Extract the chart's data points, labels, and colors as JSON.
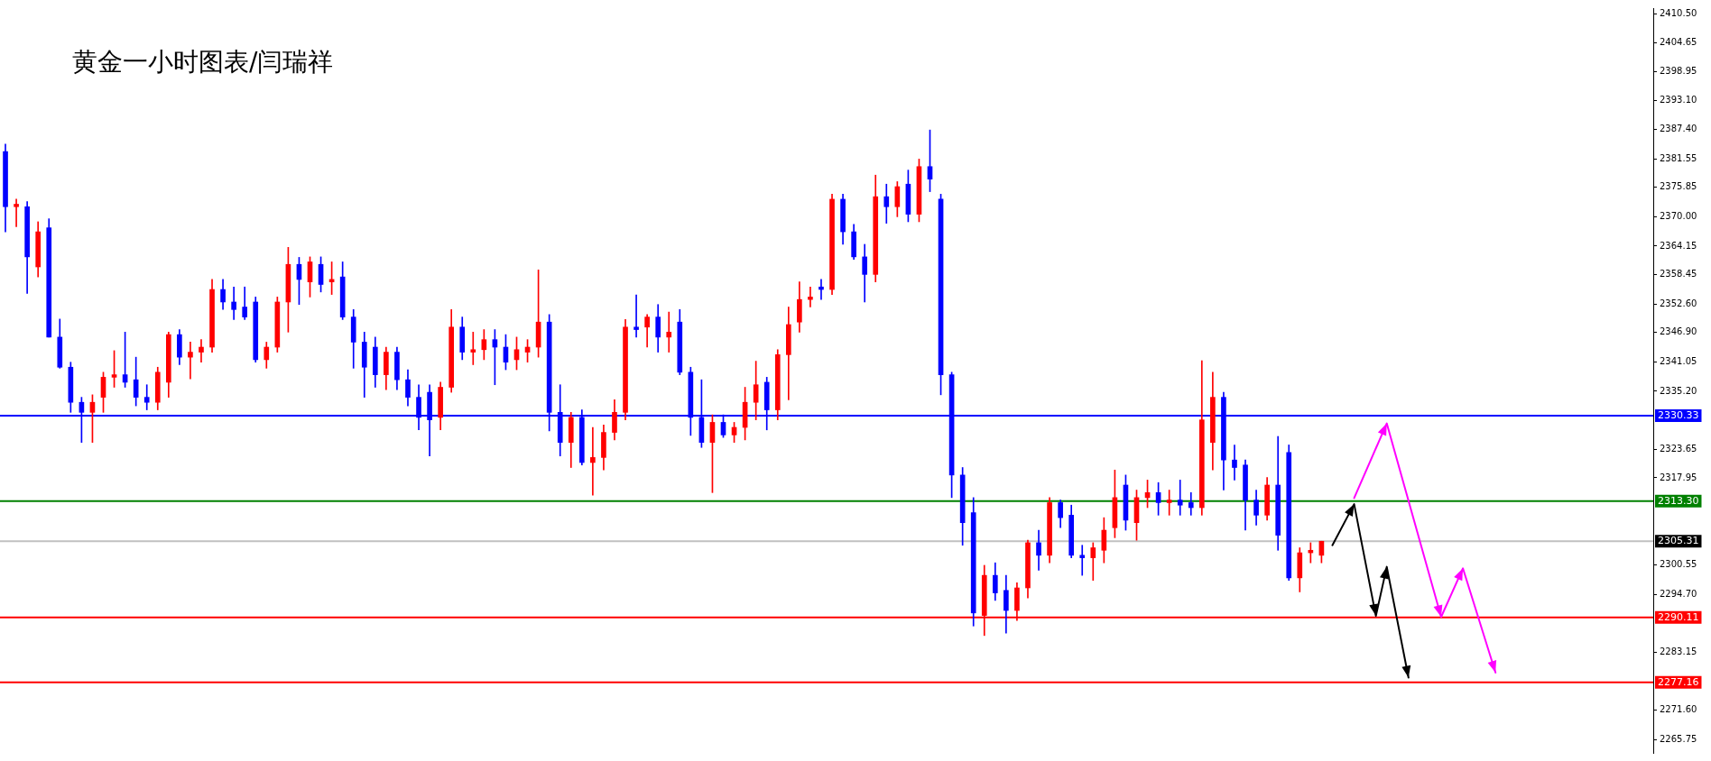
{
  "chart_data": {
    "type": "candlestick",
    "title": "黄金一小时图表/闫瑞祥",
    "categories": [
      null,
      null,
      null,
      null,
      null,
      null,
      null,
      null,
      null,
      null,
      null,
      null,
      null,
      null,
      null,
      null,
      null,
      null,
      null,
      null,
      null,
      null,
      null,
      null,
      null,
      null,
      null,
      null,
      null,
      null,
      null,
      null,
      null,
      null,
      null,
      null,
      null,
      null,
      null,
      null,
      null,
      null,
      null,
      null,
      null,
      null,
      null,
      null,
      null,
      null,
      null,
      null,
      null,
      null,
      null,
      null,
      null,
      null,
      null,
      null,
      null,
      null,
      null,
      null,
      null,
      null,
      null,
      null,
      null,
      null,
      null,
      null,
      null,
      null,
      null,
      null,
      null,
      null,
      null,
      null,
      null,
      null,
      null,
      null,
      null,
      null,
      null,
      null,
      null,
      null,
      null,
      null,
      null,
      null,
      null,
      null,
      null,
      null,
      null,
      null,
      null,
      null,
      null,
      null,
      null,
      null,
      null,
      null,
      null,
      null,
      null,
      null,
      null,
      null,
      null,
      null,
      null,
      null,
      null,
      null,
      null,
      null,
      null,
      null,
      null,
      null,
      null,
      null,
      null,
      null,
      null,
      null,
      null,
      null,
      null,
      null,
      null,
      null,
      null,
      null,
      null,
      null,
      null,
      null,
      null,
      null,
      null,
      null,
      null,
      null,
      null,
      null
    ],
    "ohlc": [
      [
        2383,
        2384.5,
        2367,
        2372
      ],
      [
        2372,
        2373.5,
        2368,
        2372.5
      ],
      [
        2372,
        2373,
        2354.7,
        2362
      ],
      [
        2360,
        2369,
        2358,
        2367
      ],
      [
        2367.8,
        2369.6,
        2346,
        2346
      ],
      [
        2346,
        2349.6,
        2339.8,
        2340
      ],
      [
        2340,
        2341,
        2331,
        2333
      ],
      [
        2333,
        2334,
        2325,
        2331
      ],
      [
        2331,
        2334.5,
        2325,
        2333
      ],
      [
        2334,
        2339,
        2331,
        2338
      ],
      [
        2338,
        2343.3,
        2336,
        2338.5
      ],
      [
        2338.5,
        2347,
        2336,
        2337
      ],
      [
        2337.5,
        2342,
        2332.3,
        2334
      ],
      [
        2334,
        2336.5,
        2331.5,
        2333
      ],
      [
        2333,
        2340,
        2331.5,
        2339
      ],
      [
        2337,
        2347,
        2334,
        2346.5
      ],
      [
        2346.5,
        2347.5,
        2340.5,
        2342
      ],
      [
        2342,
        2345,
        2337.7,
        2343
      ],
      [
        2343,
        2345.5,
        2341,
        2344
      ],
      [
        2344,
        2357.5,
        2343,
        2355.5
      ],
      [
        2355.5,
        2357.5,
        2351.5,
        2353
      ],
      [
        2353,
        2356,
        2349.5,
        2351.5
      ],
      [
        2352,
        2356,
        2349.5,
        2350
      ],
      [
        2353,
        2354,
        2341,
        2341.5
      ],
      [
        2341.5,
        2345,
        2339.8,
        2344
      ],
      [
        2344,
        2354,
        2343,
        2353
      ],
      [
        2353,
        2363.9,
        2347,
        2360.5
      ],
      [
        2360.5,
        2361.9,
        2352.5,
        2357.5
      ],
      [
        2357,
        2362,
        2354,
        2361
      ],
      [
        2360.5,
        2362,
        2355,
        2356.5
      ],
      [
        2357,
        2361,
        2354.5,
        2357.5
      ],
      [
        2358,
        2361,
        2349.5,
        2350
      ],
      [
        2350,
        2351.5,
        2339.8,
        2345
      ],
      [
        2345,
        2347,
        2334,
        2340
      ],
      [
        2344,
        2346,
        2336,
        2338.5
      ],
      [
        2338.5,
        2344,
        2335.5,
        2343
      ],
      [
        2343,
        2344,
        2335.5,
        2337.5
      ],
      [
        2337.5,
        2339.5,
        2332.3,
        2334
      ],
      [
        2334,
        2336.5,
        2327.5,
        2330
      ],
      [
        2335,
        2336.5,
        2322.3,
        2329.5
      ],
      [
        2330,
        2337,
        2327.5,
        2336
      ],
      [
        2336,
        2351.5,
        2335,
        2348
      ],
      [
        2348,
        2350,
        2341.5,
        2343
      ],
      [
        2343,
        2347,
        2340.5,
        2343.5
      ],
      [
        2343.5,
        2347.5,
        2341.5,
        2345.5
      ],
      [
        2345.5,
        2347.5,
        2336.5,
        2344
      ],
      [
        2344,
        2346.5,
        2339.5,
        2341
      ],
      [
        2341.5,
        2346,
        2339.5,
        2343.5
      ],
      [
        2343,
        2345.5,
        2341,
        2344
      ],
      [
        2344,
        2359.4,
        2342,
        2349
      ],
      [
        2349,
        2350.5,
        2327.3,
        2331
      ],
      [
        2331,
        2336.5,
        2322.3,
        2325
      ],
      [
        2325,
        2331,
        2320,
        2330
      ],
      [
        2330,
        2331.5,
        2320.5,
        2321
      ],
      [
        2321,
        2328,
        2314.5,
        2322
      ],
      [
        2322,
        2328.5,
        2319.5,
        2327
      ],
      [
        2327,
        2333.5,
        2325.5,
        2331
      ],
      [
        2331,
        2349.5,
        2329.5,
        2348
      ],
      [
        2348,
        2354.4,
        2346,
        2347.5
      ],
      [
        2348,
        2350.5,
        2344,
        2350
      ],
      [
        2350,
        2352.5,
        2343,
        2346
      ],
      [
        2346,
        2351,
        2343,
        2347
      ],
      [
        2349,
        2351.5,
        2338.5,
        2339
      ],
      [
        2339,
        2340,
        2326.4,
        2330
      ],
      [
        2330,
        2337.5,
        2324,
        2325
      ],
      [
        2325,
        2330.5,
        2315,
        2329
      ],
      [
        2329,
        2330.5,
        2326,
        2326.5
      ],
      [
        2326.5,
        2329,
        2325,
        2328
      ],
      [
        2328,
        2336,
        2325.5,
        2333
      ],
      [
        2333,
        2341.2,
        2329.5,
        2336.5
      ],
      [
        2337,
        2338,
        2327.5,
        2331.5
      ],
      [
        2331.5,
        2343.5,
        2329.5,
        2342.5
      ],
      [
        2342.5,
        2352,
        2333.5,
        2348.5
      ],
      [
        2349,
        2357,
        2347,
        2353.5
      ],
      [
        2353.5,
        2356,
        2352,
        2354
      ],
      [
        2356,
        2357.5,
        2353.5,
        2355.5
      ],
      [
        2355.5,
        2374.5,
        2354.5,
        2373.5
      ],
      [
        2373.5,
        2374.5,
        2364.5,
        2367
      ],
      [
        2367,
        2368.5,
        2361.5,
        2362
      ],
      [
        2362,
        2364.5,
        2353,
        2358.5
      ],
      [
        2358.5,
        2378.3,
        2357,
        2374
      ],
      [
        2374,
        2376.5,
        2368.7,
        2372
      ],
      [
        2372,
        2377,
        2370,
        2376
      ],
      [
        2376.5,
        2379.3,
        2369,
        2370.5
      ],
      [
        2370.5,
        2381.5,
        2369,
        2380
      ],
      [
        2380,
        2387.3,
        2375,
        2377.5
      ],
      [
        2373.5,
        2374.5,
        2334.5,
        2338.5
      ],
      [
        2338.5,
        2339,
        2314,
        2318.5
      ],
      [
        2318.5,
        2320,
        2304.5,
        2309
      ],
      [
        2311,
        2314,
        2288.4,
        2291
      ],
      [
        2290.5,
        2300.5,
        2286.5,
        2298.5
      ],
      [
        2298.5,
        2301,
        2293.5,
        2295
      ],
      [
        2295.5,
        2298.5,
        2287,
        2291.5
      ],
      [
        2291.5,
        2297,
        2289.5,
        2296
      ],
      [
        2296,
        2305.5,
        2294,
        2305
      ],
      [
        2305,
        2307.5,
        2299.5,
        2302.5
      ],
      [
        2302.5,
        2314,
        2301,
        2313
      ],
      [
        2313,
        2313.5,
        2308,
        2310
      ],
      [
        2310.5,
        2312.5,
        2302,
        2302.5
      ],
      [
        2302.5,
        2304.5,
        2298.5,
        2302
      ],
      [
        2302,
        2305,
        2297.5,
        2304
      ],
      [
        2303.5,
        2310,
        2301,
        2307.5
      ],
      [
        2308,
        2319.5,
        2306,
        2314
      ],
      [
        2316.5,
        2318.5,
        2307.5,
        2309.5
      ],
      [
        2309,
        2315.5,
        2305.5,
        2314
      ],
      [
        2314,
        2317.5,
        2312,
        2315
      ],
      [
        2315,
        2317,
        2310.5,
        2313
      ],
      [
        2313,
        2315.5,
        2310.5,
        2313.5
      ],
      [
        2313.5,
        2317.5,
        2310.5,
        2312.5
      ],
      [
        2313,
        2315,
        2310.5,
        2312
      ],
      [
        2312,
        2341.3,
        2310.5,
        2329.5
      ],
      [
        2325,
        2339,
        2319.5,
        2334
      ],
      [
        2334,
        2335,
        2315.5,
        2321.5
      ],
      [
        2321.5,
        2324.5,
        2317.5,
        2320
      ],
      [
        2320.5,
        2321.5,
        2307.5,
        2313.5
      ],
      [
        2313.5,
        2315.5,
        2308.5,
        2310.5
      ],
      [
        2310.5,
        2318,
        2309.5,
        2316.5
      ],
      [
        2316.5,
        2326.2,
        2303.5,
        2306.5
      ],
      [
        2323,
        2324.5,
        2297.5,
        2298
      ],
      [
        2298,
        2304,
        2295.2,
        2303
      ],
      [
        2303,
        2305,
        2301,
        2303.5
      ],
      [
        2302.5,
        2305.3,
        2301,
        2305.3
      ],
      null,
      null,
      null,
      null,
      null,
      null,
      null,
      null,
      null,
      null,
      null,
      null,
      null,
      null,
      null,
      null,
      null,
      null,
      null,
      null,
      null,
      null,
      null,
      null,
      null,
      null,
      null,
      null,
      null,
      null
    ],
    "colors": [
      "#0000ff",
      "#ff0000",
      "#0000ff",
      "#ff0000",
      "#0000ff",
      "#0000ff",
      "#0000ff",
      "#0000ff",
      "#ff0000",
      "#ff0000",
      "#ff0000",
      "#0000ff",
      "#0000ff",
      "#0000ff",
      "#ff0000",
      "#ff0000",
      "#0000ff",
      "#ff0000",
      "#ff0000",
      "#ff0000",
      "#0000ff",
      "#0000ff",
      "#0000ff",
      "#0000ff",
      "#ff0000",
      "#ff0000",
      "#ff0000",
      "#0000ff",
      "#ff0000",
      "#0000ff",
      "#ff0000",
      "#0000ff",
      "#0000ff",
      "#0000ff",
      "#0000ff",
      "#ff0000",
      "#0000ff",
      "#0000ff",
      "#0000ff",
      "#0000ff",
      "#ff0000",
      "#ff0000",
      "#0000ff",
      "#ff0000",
      "#ff0000",
      "#0000ff",
      "#0000ff",
      "#ff0000",
      "#ff0000",
      "#ff0000",
      "#0000ff",
      "#0000ff",
      "#ff0000",
      "#0000ff",
      "#ff0000",
      "#ff0000",
      "#ff0000",
      "#ff0000",
      "#0000ff",
      "#ff0000",
      "#0000ff",
      "#ff0000",
      "#0000ff",
      "#0000ff",
      "#0000ff",
      "#ff0000",
      "#0000ff",
      "#ff0000",
      "#ff0000",
      "#ff0000",
      "#0000ff",
      "#ff0000",
      "#ff0000",
      "#ff0000",
      "#ff0000",
      "#0000ff",
      "#ff0000",
      "#0000ff",
      "#0000ff",
      "#0000ff",
      "#ff0000",
      "#0000ff",
      "#ff0000",
      "#0000ff",
      "#ff0000",
      "#0000ff",
      "#0000ff",
      "#0000ff",
      "#0000ff",
      "#0000ff",
      "#ff0000",
      "#0000ff",
      "#0000ff",
      "#ff0000",
      "#ff0000",
      "#0000ff",
      "#ff0000",
      "#0000ff",
      "#0000ff",
      "#0000ff",
      "#ff0000",
      "#ff0000",
      "#ff0000",
      "#0000ff",
      "#ff0000",
      "#ff0000",
      "#0000ff",
      "#ff0000",
      "#0000ff",
      "#0000ff",
      "#ff0000",
      "#ff0000",
      "#0000ff",
      "#0000ff",
      "#0000ff",
      "#0000ff",
      "#ff0000",
      "#0000ff",
      "#0000ff",
      "#ff0000",
      "#ff0000",
      "#ff0000",
      null,
      null,
      null,
      null,
      null,
      null,
      null,
      null,
      null,
      null,
      null,
      null,
      null,
      null,
      null,
      null,
      null,
      null,
      null,
      null,
      null,
      null,
      null,
      null,
      null,
      null,
      null,
      null,
      null,
      null
    ],
    "series": [
      {
        "type": "line",
        "color": "#000000",
        "values": [
          null,
          null,
          null,
          null,
          null,
          null,
          null,
          null,
          null,
          null,
          null,
          null,
          null,
          null,
          null,
          null,
          null,
          null,
          null,
          null,
          null,
          null,
          null,
          null,
          null,
          null,
          null,
          null,
          null,
          null,
          null,
          null,
          null,
          null,
          null,
          null,
          null,
          null,
          null,
          null,
          null,
          null,
          null,
          null,
          null,
          null,
          null,
          null,
          null,
          null,
          null,
          null,
          null,
          null,
          null,
          null,
          null,
          null,
          null,
          null,
          null,
          null,
          null,
          null,
          null,
          null,
          null,
          null,
          null,
          null,
          null,
          null,
          null,
          null,
          null,
          null,
          null,
          null,
          null,
          null,
          null,
          null,
          null,
          null,
          null,
          null,
          null,
          null,
          null,
          null,
          null,
          null,
          null,
          null,
          null,
          null,
          null,
          null,
          null,
          null,
          null,
          null,
          null,
          null,
          null,
          null,
          null,
          null,
          null,
          null,
          null,
          null,
          null,
          null,
          null,
          null,
          null,
          null,
          null,
          null,
          null,
          null,
          2304.5,
          null,
          2312.7,
          null,
          2290.4,
          2300.2,
          null,
          2278.1,
          null,
          null,
          null,
          null,
          null,
          null,
          null,
          null,
          null,
          null,
          null,
          null,
          null,
          null,
          null,
          null,
          null,
          null,
          null,
          null,
          null,
          null
        ]
      },
      {
        "type": "line",
        "color": "#ff00ff",
        "values": [
          null,
          null,
          null,
          null,
          null,
          null,
          null,
          null,
          null,
          null,
          null,
          null,
          null,
          null,
          null,
          null,
          null,
          null,
          null,
          null,
          null,
          null,
          null,
          null,
          null,
          null,
          null,
          null,
          null,
          null,
          null,
          null,
          null,
          null,
          null,
          null,
          null,
          null,
          null,
          null,
          null,
          null,
          null,
          null,
          null,
          null,
          null,
          null,
          null,
          null,
          null,
          null,
          null,
          null,
          null,
          null,
          null,
          null,
          null,
          null,
          null,
          null,
          null,
          null,
          null,
          null,
          null,
          null,
          null,
          null,
          null,
          null,
          null,
          null,
          null,
          null,
          null,
          null,
          null,
          null,
          null,
          null,
          null,
          null,
          null,
          null,
          null,
          null,
          null,
          null,
          null,
          null,
          null,
          null,
          null,
          null,
          null,
          null,
          null,
          null,
          null,
          null,
          null,
          null,
          null,
          null,
          null,
          null,
          null,
          null,
          null,
          null,
          null,
          null,
          null,
          null,
          null,
          null,
          null,
          null,
          null,
          null,
          null,
          null,
          2313.9,
          null,
          null,
          2328.8,
          null,
          null,
          null,
          null,
          2290.2,
          null,
          2299.9,
          null,
          null,
          2279.1,
          null,
          null,
          null,
          null,
          null,
          null,
          null,
          null,
          null,
          null,
          null,
          null,
          null,
          null
        ]
      }
    ],
    "ylim": [
      2263.1,
      2411.6
    ],
    "yticks": [
      {
        "value": 2410.5,
        "label": "2410.50"
      },
      {
        "value": 2404.65,
        "label": "2404.65"
      },
      {
        "value": 2398.95,
        "label": "2398.95"
      },
      {
        "value": 2393.1,
        "label": "2393.10"
      },
      {
        "value": 2387.4,
        "label": "2387.40"
      },
      {
        "value": 2381.55,
        "label": "2381.55"
      },
      {
        "value": 2375.85,
        "label": "2375.85"
      },
      {
        "value": 2370,
        "label": "2370.00"
      },
      {
        "value": 2364.15,
        "label": "2364.15"
      },
      {
        "value": 2358.45,
        "label": "2358.45"
      },
      {
        "value": 2352.6,
        "label": "2352.60"
      },
      {
        "value": 2346.9,
        "label": "2346.90"
      },
      {
        "value": 2341.05,
        "label": "2341.05"
      },
      {
        "value": 2335.2,
        "label": "2335.20"
      },
      {
        "value": 2323.65,
        "label": "2323.65"
      },
      {
        "value": 2317.95,
        "label": "2317.95"
      },
      {
        "value": 2300.55,
        "label": "2300.55"
      },
      {
        "value": 2294.7,
        "label": "2294.70"
      },
      {
        "value": 2283.15,
        "label": "2283.15"
      },
      {
        "value": 2271.6,
        "label": "2271.60"
      },
      {
        "value": 2265.75,
        "label": "2265.75"
      }
    ],
    "ref_lines": [
      {
        "axis": "y",
        "value": 2330.33,
        "label": "2330.33",
        "color": "#0000ff"
      },
      {
        "axis": "y",
        "value": 2313.3,
        "label": "2313.30",
        "color": "#008000"
      },
      {
        "axis": "y",
        "value": 2305.31,
        "label": "2305.31",
        "color": "#c0c0c0"
      },
      {
        "axis": "y",
        "value": 2290.11,
        "label": "2290.11",
        "color": "#ff0000"
      },
      {
        "axis": "y",
        "value": 2277.16,
        "label": "2277.16",
        "color": "#ff0000"
      }
    ],
    "tick_labels": "y",
    "grid": false,
    "legend": false
  }
}
